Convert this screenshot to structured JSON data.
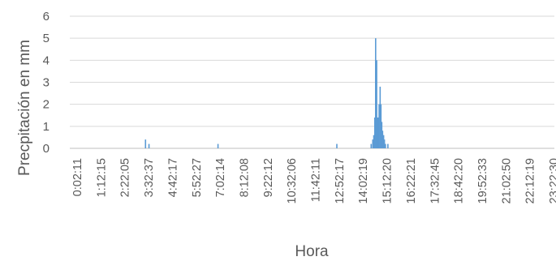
{
  "chart_data": {
    "type": "bar",
    "title": "",
    "xlabel": "Hora",
    "ylabel": "Precpitación en mm",
    "ylim": [
      0,
      6
    ],
    "yticks": [
      0,
      1,
      2,
      3,
      4,
      5,
      6
    ],
    "xticks": [
      "0:02:11",
      "1:12:15",
      "2:22:05",
      "3:32:37",
      "4:42:17",
      "5:52:27",
      "7:02:14",
      "8:12:08",
      "9:22:12",
      "10:32:06",
      "11:42:11",
      "12:52:17",
      "14:02:19",
      "15:12:20",
      "16:22:21",
      "17:32:45",
      "18:42:20",
      "19:52:33",
      "21:02:50",
      "22:12:19",
      "23:22:30"
    ],
    "x_unit": "hours of day",
    "grid": "horizontal",
    "bar_color": "#5B9BD5",
    "points": [
      {
        "x": 3.35,
        "y": 0.4
      },
      {
        "x": 3.52,
        "y": 0.2
      },
      {
        "x": 6.9,
        "y": 0.2
      },
      {
        "x": 12.72,
        "y": 0.2
      },
      {
        "x": 14.4,
        "y": 0.2
      },
      {
        "x": 14.48,
        "y": 0.4
      },
      {
        "x": 14.53,
        "y": 0.6
      },
      {
        "x": 14.58,
        "y": 1.4
      },
      {
        "x": 14.62,
        "y": 5.0
      },
      {
        "x": 14.67,
        "y": 4.0
      },
      {
        "x": 14.71,
        "y": 1.4
      },
      {
        "x": 14.75,
        "y": 1.4
      },
      {
        "x": 14.79,
        "y": 2.0
      },
      {
        "x": 14.84,
        "y": 2.8
      },
      {
        "x": 14.88,
        "y": 2.0
      },
      {
        "x": 14.92,
        "y": 1.2
      },
      {
        "x": 14.96,
        "y": 0.8
      },
      {
        "x": 15.01,
        "y": 0.6
      },
      {
        "x": 15.05,
        "y": 0.4
      },
      {
        "x": 15.1,
        "y": 0.2
      },
      {
        "x": 15.22,
        "y": 0.2
      }
    ]
  }
}
